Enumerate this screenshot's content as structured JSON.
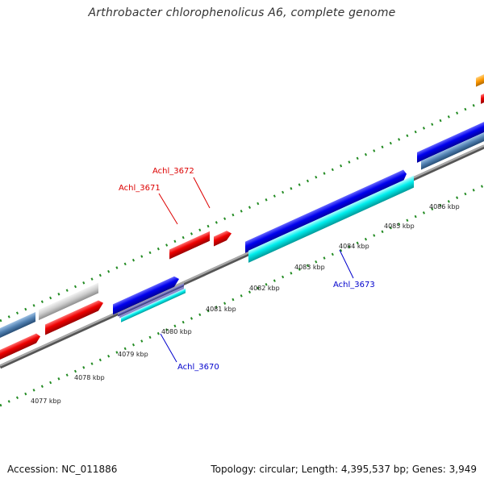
{
  "title": "Arthrobacter chlorophenolicus A6, complete genome",
  "footer": {
    "accession": "Accession: NC_011886",
    "topology": "Topology: circular; Length: 4,395,537 bp; Genes: 3,949"
  },
  "colors": {
    "forward_gene": "#0000ee",
    "reverse_gene": "#ee0000",
    "rna_gene": "#00e5ee",
    "pseudo_gene": "#cccccc",
    "steel_gene": "#4f7fb0",
    "orange_gene": "#ff9900",
    "axis_ticks": "#228b22",
    "backbone": "#8a8a8a",
    "label_reverse": "#dd0000",
    "label_forward": "#0000cc"
  },
  "kbp_labels": [
    {
      "text": "4077 kbp"
    },
    {
      "text": "4078 kbp"
    },
    {
      "text": "4079 kbp"
    },
    {
      "text": "4080 kbp"
    },
    {
      "text": "4081 kbp"
    },
    {
      "text": "4082 kbp"
    },
    {
      "text": "4083 kbp"
    },
    {
      "text": "4084 kbp"
    },
    {
      "text": "4085 kbp"
    },
    {
      "text": "4086 kbp"
    }
  ],
  "gene_labels": [
    {
      "text": "Achl_3672",
      "strand": "reverse"
    },
    {
      "text": "Achl_3671",
      "strand": "reverse"
    },
    {
      "text": "Achl_3673",
      "strand": "forward"
    },
    {
      "text": "Achl_3670",
      "strand": "forward"
    }
  ]
}
